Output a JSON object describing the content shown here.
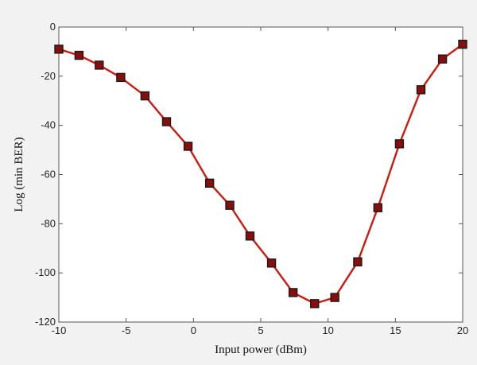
{
  "chart_data": {
    "type": "line",
    "title": "",
    "xlabel": "Input power (dBm)",
    "ylabel": "Log (min BER)",
    "xlim": [
      -10,
      20
    ],
    "ylim": [
      -120,
      0
    ],
    "xticks": [
      -10,
      -5,
      0,
      5,
      10,
      15,
      20
    ],
    "yticks": [
      0,
      -20,
      -40,
      -60,
      -80,
      -100,
      -120
    ],
    "grid": false,
    "legend": "none",
    "series": [
      {
        "color": "#cc1a10",
        "marker": "square",
        "marker_color": "#8a0d0d",
        "x": [
          -10,
          -8.5,
          -7,
          -5.4,
          -3.6,
          -2,
          -0.4,
          1.2,
          2.7,
          4.2,
          5.8,
          7.4,
          9,
          10.5,
          12.2,
          13.7,
          15.3,
          16.9,
          18.5,
          20
        ],
        "y": [
          -9,
          -11.5,
          -15.5,
          -20.5,
          -28,
          -38.5,
          -48.5,
          -63.5,
          -72.5,
          -85,
          -96,
          -108,
          -112.5,
          -110,
          -95.5,
          -73.5,
          -47.5,
          -25.5,
          -13,
          -7
        ]
      }
    ]
  }
}
